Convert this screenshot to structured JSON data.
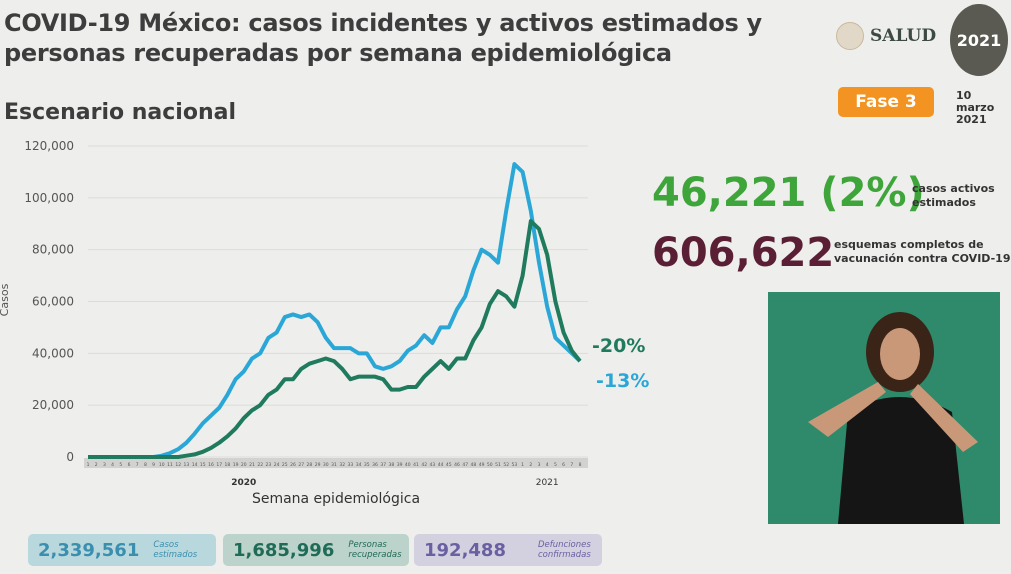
{
  "header": {
    "title_line1": "COVID-19 México: casos incidentes y activos estimados y",
    "title_line2": "personas recuperadas por semana epidemiológica",
    "subtitle": "Escenario nacional",
    "salud": "SALUD",
    "logo_text": "2021",
    "phase": "Fase 3",
    "date_line1": "10 marzo",
    "date_line2": "2021"
  },
  "stats": {
    "active": "46,221 (2%)",
    "active_label_1": "casos activos",
    "active_label_2": "estimados",
    "vaccines": "606,622",
    "vaccines_label_1": "esquemas completos de",
    "vaccines_label_2": "vacunación contra COVID-19"
  },
  "bottom": [
    {
      "value": "2,339,561",
      "label1": "Casos",
      "label2": "estimados",
      "color": "#3a8fae"
    },
    {
      "value": "1,685,996",
      "label1": "Personas",
      "label2": "recuperadas",
      "color": "#1f6b56"
    },
    {
      "value": "192,488",
      "label1": "Defunciones",
      "label2": "confirmadas",
      "color": "#6a5fa0"
    }
  ],
  "chart_data": {
    "type": "line",
    "xlabel": "Semana epidemiológica",
    "ylabel": "Casos",
    "ylim": [
      0,
      120000
    ],
    "yticks": [
      0,
      20000,
      40000,
      60000,
      80000,
      100000,
      120000
    ],
    "ytick_labels": [
      "0",
      "20,000",
      "40,000",
      "60,000",
      "80,000",
      "100,000",
      "120,000"
    ],
    "year_labels": [
      "2020",
      "2021"
    ],
    "weeks": [
      1,
      2,
      3,
      4,
      5,
      6,
      7,
      8,
      9,
      10,
      11,
      12,
      13,
      14,
      15,
      16,
      17,
      18,
      19,
      20,
      21,
      22,
      23,
      24,
      25,
      26,
      27,
      28,
      29,
      30,
      31,
      32,
      33,
      34,
      35,
      36,
      37,
      38,
      39,
      40,
      41,
      42,
      43,
      44,
      45,
      46,
      47,
      48,
      49,
      50,
      51,
      52,
      53,
      1,
      2,
      3,
      4,
      5,
      6,
      7,
      8
    ],
    "series": [
      {
        "name": "Casos estimados",
        "color": "#2aa7d6",
        "end_label": "-13%",
        "values": [
          0,
          0,
          0,
          0,
          0,
          0,
          0,
          0,
          0,
          500,
          1500,
          3000,
          5500,
          9000,
          13000,
          16000,
          19000,
          24000,
          30000,
          33000,
          38000,
          40000,
          46000,
          48000,
          54000,
          55000,
          54000,
          55000,
          52000,
          46000,
          42000,
          42000,
          42000,
          40000,
          40000,
          35000,
          34000,
          35000,
          37000,
          41000,
          43000,
          47000,
          44000,
          50000,
          50000,
          57000,
          62000,
          72000,
          80000,
          78000,
          75000,
          95000,
          113000,
          110000,
          95000,
          75000,
          58000,
          46000,
          43000,
          40000,
          37000
        ]
      },
      {
        "name": "Personas recuperadas",
        "color": "#1f7a5e",
        "end_label": "-20%",
        "values": [
          0,
          0,
          0,
          0,
          0,
          0,
          0,
          0,
          0,
          0,
          0,
          0,
          500,
          1000,
          2000,
          3500,
          5500,
          8000,
          11000,
          15000,
          18000,
          20000,
          24000,
          26000,
          30000,
          30000,
          34000,
          36000,
          37000,
          38000,
          37000,
          34000,
          30000,
          31000,
          31000,
          31000,
          30000,
          26000,
          26000,
          27000,
          27000,
          31000,
          34000,
          37000,
          34000,
          38000,
          38000,
          45000,
          50000,
          59000,
          64000,
          62000,
          58000,
          70000,
          91000,
          88000,
          78000,
          60000,
          48000,
          41000,
          37000
        ]
      }
    ]
  }
}
